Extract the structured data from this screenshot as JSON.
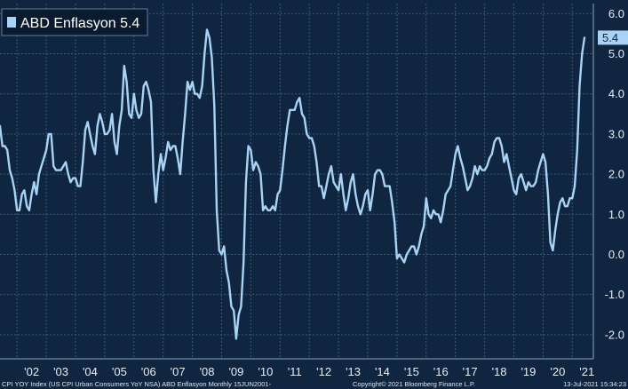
{
  "chart_data": {
    "type": "line",
    "series": [
      {
        "name": "ABD Enflasyon",
        "legend_value": "5.4",
        "color": "#a8d3f5",
        "x": [
          "2001-06",
          "2001-07",
          "2001-08",
          "2001-09",
          "2001-10",
          "2001-11",
          "2001-12",
          "2002-01",
          "2002-02",
          "2002-03",
          "2002-04",
          "2002-05",
          "2002-06",
          "2002-07",
          "2002-08",
          "2002-09",
          "2002-10",
          "2002-11",
          "2002-12",
          "2003-01",
          "2003-02",
          "2003-03",
          "2003-04",
          "2003-05",
          "2003-06",
          "2003-07",
          "2003-08",
          "2003-09",
          "2003-10",
          "2003-11",
          "2003-12",
          "2004-01",
          "2004-02",
          "2004-03",
          "2004-04",
          "2004-05",
          "2004-06",
          "2004-07",
          "2004-08",
          "2004-09",
          "2004-10",
          "2004-11",
          "2004-12",
          "2005-01",
          "2005-02",
          "2005-03",
          "2005-04",
          "2005-05",
          "2005-06",
          "2005-07",
          "2005-08",
          "2005-09",
          "2005-10",
          "2005-11",
          "2005-12",
          "2006-01",
          "2006-02",
          "2006-03",
          "2006-04",
          "2006-05",
          "2006-06",
          "2006-07",
          "2006-08",
          "2006-09",
          "2006-10",
          "2006-11",
          "2006-12",
          "2007-01",
          "2007-02",
          "2007-03",
          "2007-04",
          "2007-05",
          "2007-06",
          "2007-07",
          "2007-08",
          "2007-09",
          "2007-10",
          "2007-11",
          "2007-12",
          "2008-01",
          "2008-02",
          "2008-03",
          "2008-04",
          "2008-05",
          "2008-06",
          "2008-07",
          "2008-08",
          "2008-09",
          "2008-10",
          "2008-11",
          "2008-12",
          "2009-01",
          "2009-02",
          "2009-03",
          "2009-04",
          "2009-05",
          "2009-06",
          "2009-07",
          "2009-08",
          "2009-09",
          "2009-10",
          "2009-11",
          "2009-12",
          "2010-01",
          "2010-02",
          "2010-03",
          "2010-04",
          "2010-05",
          "2010-06",
          "2010-07",
          "2010-08",
          "2010-09",
          "2010-10",
          "2010-11",
          "2010-12",
          "2011-01",
          "2011-02",
          "2011-03",
          "2011-04",
          "2011-05",
          "2011-06",
          "2011-07",
          "2011-08",
          "2011-09",
          "2011-10",
          "2011-11",
          "2011-12",
          "2012-01",
          "2012-02",
          "2012-03",
          "2012-04",
          "2012-05",
          "2012-06",
          "2012-07",
          "2012-08",
          "2012-09",
          "2012-10",
          "2012-11",
          "2012-12",
          "2013-01",
          "2013-02",
          "2013-03",
          "2013-04",
          "2013-05",
          "2013-06",
          "2013-07",
          "2013-08",
          "2013-09",
          "2013-10",
          "2013-11",
          "2013-12",
          "2014-01",
          "2014-02",
          "2014-03",
          "2014-04",
          "2014-05",
          "2014-06",
          "2014-07",
          "2014-08",
          "2014-09",
          "2014-10",
          "2014-11",
          "2014-12",
          "2015-01",
          "2015-02",
          "2015-03",
          "2015-04",
          "2015-05",
          "2015-06",
          "2015-07",
          "2015-08",
          "2015-09",
          "2015-10",
          "2015-11",
          "2015-12",
          "2016-01",
          "2016-02",
          "2016-03",
          "2016-04",
          "2016-05",
          "2016-06",
          "2016-07",
          "2016-08",
          "2016-09",
          "2016-10",
          "2016-11",
          "2016-12",
          "2017-01",
          "2017-02",
          "2017-03",
          "2017-04",
          "2017-05",
          "2017-06",
          "2017-07",
          "2017-08",
          "2017-09",
          "2017-10",
          "2017-11",
          "2017-12",
          "2018-01",
          "2018-02",
          "2018-03",
          "2018-04",
          "2018-05",
          "2018-06",
          "2018-07",
          "2018-08",
          "2018-09",
          "2018-10",
          "2018-11",
          "2018-12",
          "2019-01",
          "2019-02",
          "2019-03",
          "2019-04",
          "2019-05",
          "2019-06",
          "2019-07",
          "2019-08",
          "2019-09",
          "2019-10",
          "2019-11",
          "2019-12",
          "2020-01",
          "2020-02",
          "2020-03",
          "2020-04",
          "2020-05",
          "2020-06",
          "2020-07",
          "2020-08",
          "2020-09",
          "2020-10",
          "2020-11",
          "2020-12",
          "2021-01",
          "2021-02",
          "2021-03",
          "2021-04",
          "2021-05",
          "2021-06"
        ],
        "values": [
          3.2,
          2.7,
          2.7,
          2.6,
          2.1,
          1.9,
          1.6,
          1.1,
          1.1,
          1.5,
          1.6,
          1.2,
          1.1,
          1.5,
          1.8,
          1.5,
          2.0,
          2.2,
          2.4,
          2.6,
          3.0,
          3.0,
          2.2,
          2.1,
          2.1,
          2.1,
          2.2,
          2.3,
          2.0,
          1.8,
          1.9,
          1.9,
          1.7,
          1.7,
          2.3,
          3.1,
          3.3,
          3.0,
          2.7,
          2.5,
          3.2,
          3.5,
          3.3,
          3.0,
          3.0,
          3.1,
          3.5,
          2.8,
          2.5,
          3.2,
          3.6,
          4.7,
          4.3,
          3.5,
          3.4,
          4.0,
          3.6,
          3.4,
          3.5,
          4.2,
          4.3,
          4.1,
          3.8,
          2.1,
          1.3,
          2.0,
          2.5,
          2.1,
          2.4,
          2.8,
          2.6,
          2.7,
          2.7,
          2.4,
          2.0,
          2.8,
          3.5,
          4.3,
          4.1,
          4.3,
          4.0,
          4.0,
          3.9,
          4.2,
          5.0,
          5.6,
          5.4,
          4.9,
          3.7,
          1.1,
          0.1,
          0.0,
          0.2,
          -0.4,
          -0.7,
          -1.3,
          -1.4,
          -2.1,
          -1.5,
          -1.3,
          -0.2,
          1.8,
          2.7,
          2.6,
          2.1,
          2.3,
          2.2,
          2.0,
          1.1,
          1.2,
          1.1,
          1.1,
          1.2,
          1.1,
          1.5,
          1.6,
          2.1,
          2.7,
          3.2,
          3.6,
          3.6,
          3.6,
          3.8,
          3.9,
          3.5,
          3.4,
          3.0,
          2.9,
          2.9,
          2.7,
          2.3,
          1.7,
          1.7,
          1.4,
          1.7,
          2.0,
          2.2,
          1.8,
          1.7,
          1.6,
          2.0,
          1.5,
          1.1,
          1.4,
          1.8,
          2.0,
          1.5,
          1.2,
          1.0,
          1.2,
          1.5,
          1.6,
          1.1,
          1.5,
          2.0,
          2.1,
          2.1,
          2.0,
          1.7,
          1.7,
          1.7,
          1.3,
          0.8,
          -0.1,
          0.0,
          -0.1,
          -0.2,
          0.0,
          0.1,
          0.2,
          0.2,
          0.0,
          0.2,
          0.5,
          0.7,
          1.4,
          1.0,
          0.9,
          1.1,
          1.0,
          1.0,
          0.8,
          1.1,
          1.5,
          1.6,
          1.7,
          2.1,
          2.5,
          2.7,
          2.4,
          2.2,
          1.9,
          1.6,
          1.7,
          1.9,
          2.2,
          2.0,
          2.2,
          2.1,
          2.1,
          2.2,
          2.4,
          2.5,
          2.8,
          2.9,
          2.9,
          2.7,
          2.3,
          2.5,
          2.2,
          1.9,
          1.6,
          1.5,
          1.9,
          2.0,
          1.8,
          1.6,
          1.8,
          1.7,
          1.7,
          1.8,
          2.1,
          2.3,
          2.5,
          2.3,
          1.5,
          0.3,
          0.1,
          0.6,
          1.0,
          1.3,
          1.4,
          1.2,
          1.2,
          1.4,
          1.4,
          1.7,
          2.6,
          4.2,
          5.0,
          5.4
        ]
      }
    ],
    "x_tick_labels": [
      "'02",
      "'03",
      "'04",
      "'05",
      "'06",
      "'07",
      "'08",
      "'09",
      "'10",
      "'11",
      "'12",
      "'13",
      "'14",
      "'15",
      "'16",
      "'17",
      "'18",
      "'19",
      "'20",
      "'21"
    ],
    "y_tick_labels": [
      "6.0",
      "5.0",
      "4.0",
      "3.0",
      "2.0",
      "1.0",
      "0.0",
      "-1.0",
      "-2.0"
    ],
    "y_ticks": [
      6,
      5,
      4,
      3,
      2,
      1,
      0,
      -1,
      -2
    ],
    "ylim": [
      -2.6,
      6.25
    ],
    "grid": true,
    "legend_position": "top-left",
    "last_value_label": "5.4",
    "axis_colors": {
      "background": "#0f2540",
      "grid": "#3b5a7c",
      "frame": "#8aa5c2",
      "line": "#a8d3f5"
    }
  },
  "footer": {
    "left": "CPI YOY Index (US CPI Urban Consumers YoY NSA) ABD Enflasyon  Monthly 15JUN2001-",
    "center": "Copyright© 2021 Bloomberg Finance L.P.",
    "right": "13-Jul-2021 15:34:23"
  }
}
